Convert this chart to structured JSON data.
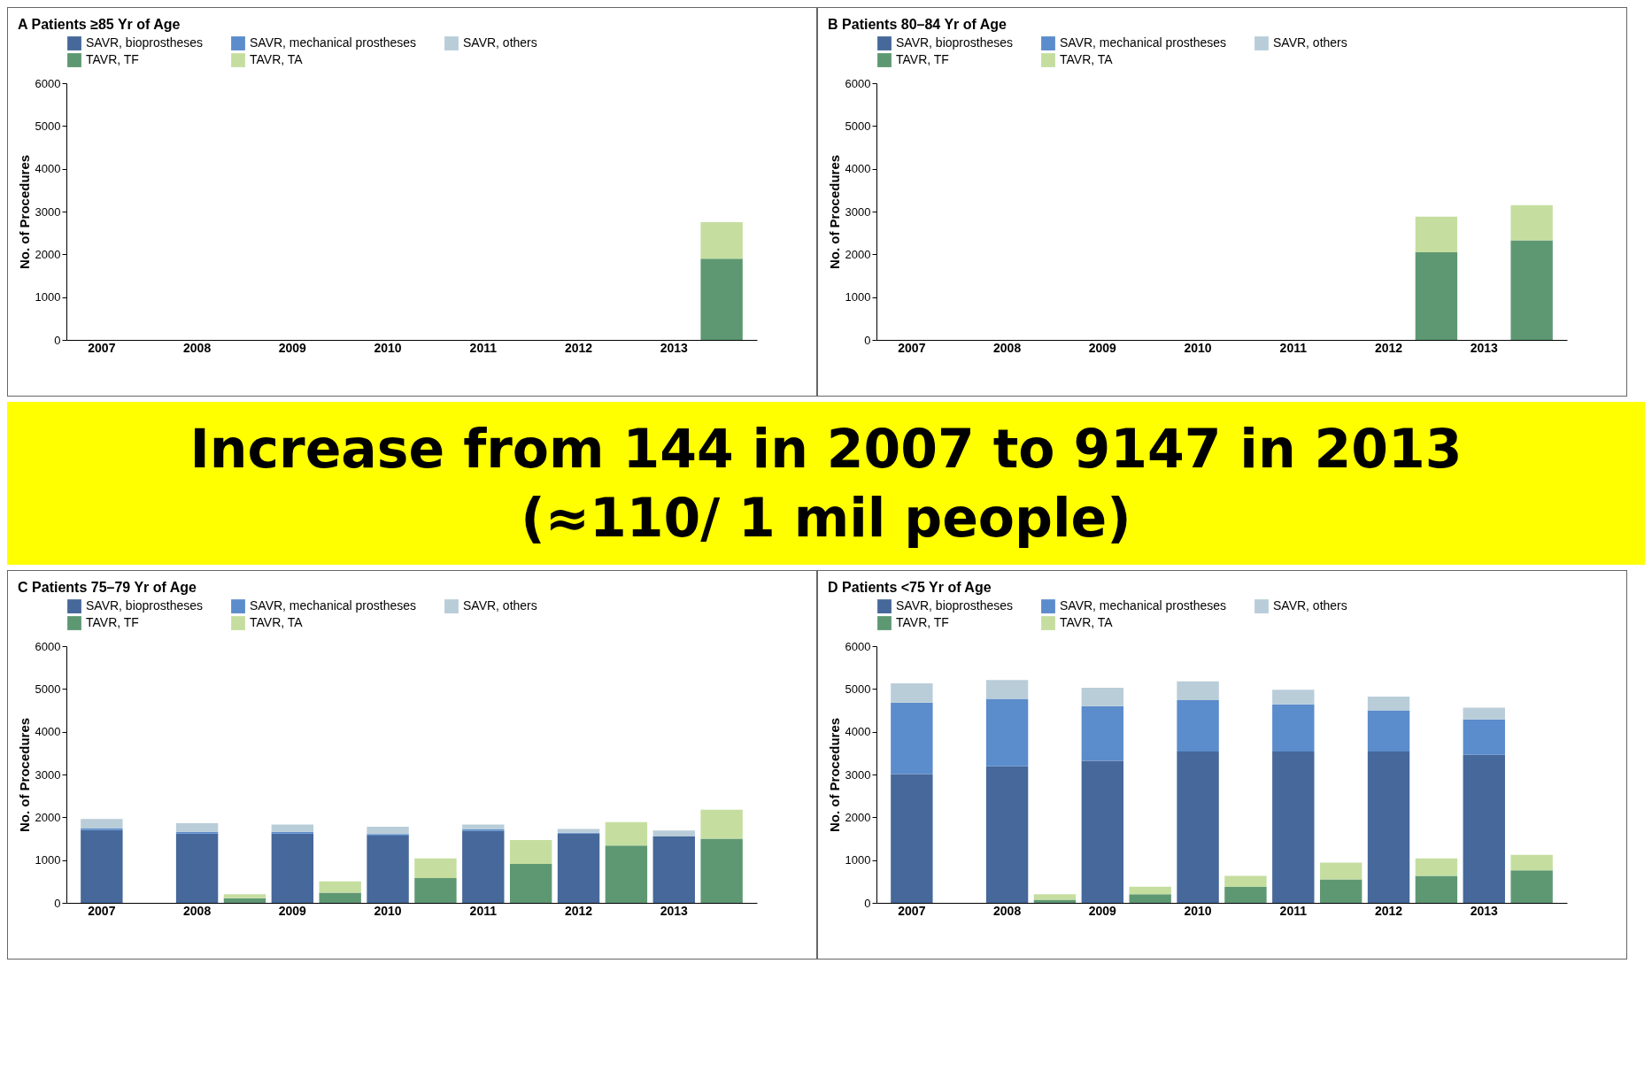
{
  "chart_data": [
    {
      "type": "bar",
      "title": "A Patients ≥85 Yr of Age",
      "ylabel": "No. of Procedures",
      "categories": [
        "2007",
        null,
        "2008",
        null,
        "2009",
        null,
        "2010",
        null,
        "2011",
        null,
        "2012",
        null,
        "2013",
        null
      ],
      "stacked": true,
      "ylim": [
        0,
        6000
      ],
      "yticks": [
        0,
        1000,
        2000,
        3000,
        4000,
        5000,
        6000
      ],
      "legend": "top",
      "series": [
        {
          "name": "SAVR, bioprostheses",
          "color": "#46689a",
          "values": [
            null,
            null,
            null,
            null,
            null,
            null,
            null,
            null,
            null,
            null,
            null,
            null,
            null,
            null
          ]
        },
        {
          "name": "SAVR, mechanical prostheses",
          "color": "#5b8ccb",
          "values": [
            null,
            null,
            null,
            null,
            null,
            null,
            null,
            null,
            null,
            null,
            null,
            null,
            null,
            null
          ]
        },
        {
          "name": "SAVR, others",
          "color": "#b9cdd9",
          "values": [
            null,
            null,
            null,
            null,
            null,
            null,
            null,
            null,
            null,
            null,
            null,
            null,
            null,
            null
          ]
        },
        {
          "name": "TAVR, TF",
          "color": "#5e9873",
          "values": [
            null,
            null,
            null,
            null,
            null,
            null,
            null,
            null,
            null,
            null,
            null,
            null,
            null,
            1900
          ]
        },
        {
          "name": "TAVR, TA",
          "color": "#c5dea0",
          "values": [
            null,
            null,
            null,
            null,
            null,
            null,
            null,
            null,
            null,
            null,
            null,
            null,
            null,
            850
          ]
        }
      ]
    },
    {
      "type": "bar",
      "title": "B Patients 80–84 Yr of Age",
      "ylabel": "No. of Procedures",
      "categories": [
        "2007",
        null,
        "2008",
        null,
        "2009",
        null,
        "2010",
        null,
        "2011",
        null,
        "2012",
        null,
        "2013",
        null
      ],
      "stacked": true,
      "ylim": [
        0,
        6000
      ],
      "yticks": [
        0,
        1000,
        2000,
        3000,
        4000,
        5000,
        6000
      ],
      "legend": "top",
      "series": [
        {
          "name": "SAVR, bioprostheses",
          "color": "#46689a",
          "values": [
            null,
            null,
            null,
            null,
            null,
            null,
            null,
            null,
            null,
            null,
            null,
            null,
            null,
            null
          ]
        },
        {
          "name": "SAVR, mechanical prostheses",
          "color": "#5b8ccb",
          "values": [
            null,
            null,
            null,
            null,
            null,
            null,
            null,
            null,
            null,
            null,
            null,
            null,
            null,
            null
          ]
        },
        {
          "name": "SAVR, others",
          "color": "#b9cdd9",
          "values": [
            null,
            null,
            null,
            null,
            null,
            null,
            null,
            null,
            null,
            null,
            null,
            null,
            null,
            null
          ]
        },
        {
          "name": "TAVR, TF",
          "color": "#5e9873",
          "values": [
            null,
            null,
            null,
            null,
            null,
            null,
            null,
            null,
            null,
            null,
            null,
            2050,
            null,
            2330
          ]
        },
        {
          "name": "TAVR, TA",
          "color": "#c5dea0",
          "values": [
            null,
            null,
            null,
            null,
            null,
            null,
            null,
            null,
            null,
            null,
            null,
            830,
            null,
            820
          ]
        }
      ]
    },
    {
      "type": "other",
      "annotations": [
        "Increase from 144 in 2007 to 9147 in 2013 (≈110/ 1 mil people)"
      ]
    },
    {
      "type": "bar",
      "title": "C Patients 75–79 Yr of Age",
      "ylabel": "No. of Procedures",
      "categories": [
        "2007",
        null,
        "2008",
        null,
        "2009",
        null,
        "2010",
        null,
        "2011",
        null,
        "2012",
        null,
        "2013",
        null
      ],
      "stacked": true,
      "ylim": [
        0,
        6000
      ],
      "yticks": [
        0,
        1000,
        2000,
        3000,
        4000,
        5000,
        6000
      ],
      "legend": "top",
      "series": [
        {
          "name": "SAVR, bioprostheses",
          "color": "#46689a",
          "values": [
            1700,
            null,
            1620,
            null,
            1620,
            null,
            1570,
            null,
            1680,
            null,
            1620,
            null,
            1550,
            null
          ]
        },
        {
          "name": "SAVR, mechanical prostheses",
          "color": "#5b8ccb",
          "values": [
            40,
            null,
            40,
            null,
            40,
            null,
            40,
            null,
            40,
            null,
            20,
            null,
            null,
            null
          ]
        },
        {
          "name": "SAVR, others",
          "color": "#b9cdd9",
          "values": [
            220,
            null,
            200,
            null,
            170,
            null,
            170,
            null,
            110,
            null,
            90,
            null,
            140,
            null
          ]
        },
        {
          "name": "TAVR, TF",
          "color": "#5e9873",
          "values": [
            null,
            null,
            null,
            110,
            null,
            240,
            null,
            580,
            null,
            910,
            null,
            1340,
            null,
            1500
          ]
        },
        {
          "name": "TAVR, TA",
          "color": "#c5dea0",
          "values": [
            null,
            null,
            null,
            90,
            null,
            260,
            null,
            460,
            null,
            560,
            null,
            550,
            null,
            680
          ]
        }
      ]
    },
    {
      "type": "bar",
      "title": "D Patients <75 Yr of Age",
      "ylabel": "No. of Procedures",
      "categories": [
        "2007",
        null,
        "2008",
        null,
        "2009",
        null,
        "2010",
        null,
        "2011",
        null,
        "2012",
        null,
        "2013",
        null
      ],
      "stacked": true,
      "ylim": [
        0,
        6000
      ],
      "yticks": [
        0,
        1000,
        2000,
        3000,
        4000,
        5000,
        6000
      ],
      "legend": "top",
      "series": [
        {
          "name": "SAVR, bioprostheses",
          "color": "#46689a",
          "values": [
            3010,
            null,
            3190,
            null,
            3320,
            null,
            3540,
            null,
            3540,
            null,
            3540,
            null,
            3460,
            null
          ]
        },
        {
          "name": "SAVR, mechanical prostheses",
          "color": "#5b8ccb",
          "values": [
            1670,
            null,
            1580,
            null,
            1280,
            null,
            1200,
            null,
            1100,
            null,
            960,
            null,
            830,
            null
          ]
        },
        {
          "name": "SAVR, others",
          "color": "#b9cdd9",
          "values": [
            450,
            null,
            440,
            null,
            430,
            null,
            440,
            null,
            340,
            null,
            320,
            null,
            270,
            null
          ]
        },
        {
          "name": "TAVR, TF",
          "color": "#5e9873",
          "values": [
            null,
            null,
            null,
            70,
            null,
            200,
            null,
            370,
            null,
            550,
            null,
            630,
            null,
            760
          ]
        },
        {
          "name": "TAVR, TA",
          "color": "#c5dea0",
          "values": [
            null,
            null,
            null,
            130,
            null,
            180,
            null,
            260,
            null,
            390,
            null,
            410,
            null,
            360
          ]
        }
      ]
    }
  ]
}
